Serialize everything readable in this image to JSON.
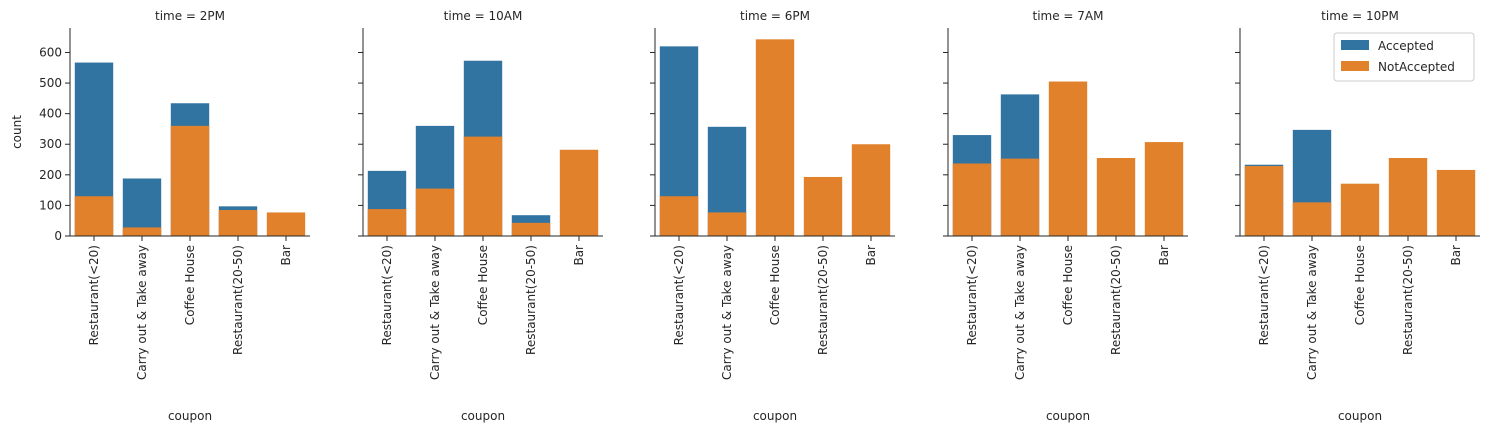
{
  "chart_data": {
    "type": "bar",
    "facet_variable": "time",
    "xlabel": "coupon",
    "ylabel": "count",
    "ylim": [
      0,
      680
    ],
    "yticks": [
      0,
      100,
      200,
      300,
      400,
      500,
      600
    ],
    "categories": [
      "Restaurant(<20)",
      "Carry out & Take away",
      "Coffee House",
      "Restaurant(20-50)",
      "Bar"
    ],
    "legend": {
      "placement": "top-right",
      "entries": [
        {
          "label": "Accepted",
          "color": "#3274a1"
        },
        {
          "label": "NotAccepted",
          "color": "#e1812c"
        }
      ]
    },
    "panels": [
      {
        "title": "time = 2PM",
        "series": [
          {
            "name": "Accepted",
            "values": [
              567,
              188,
              434,
              97,
              0
            ]
          },
          {
            "name": "NotAccepted",
            "values": [
              130,
              28,
              360,
              85,
              77
            ]
          }
        ]
      },
      {
        "title": "time = 10AM",
        "series": [
          {
            "name": "Accepted",
            "values": [
              213,
              360,
              573,
              68,
              0
            ]
          },
          {
            "name": "NotAccepted",
            "values": [
              88,
              155,
              325,
              43,
              282
            ]
          }
        ]
      },
      {
        "title": "time = 6PM",
        "series": [
          {
            "name": "Accepted",
            "values": [
              620,
              357,
              0,
              0,
              0
            ]
          },
          {
            "name": "NotAccepted",
            "values": [
              130,
              77,
              643,
              193,
              300
            ]
          }
        ]
      },
      {
        "title": "time = 7AM",
        "series": [
          {
            "name": "Accepted",
            "values": [
              330,
              463,
              0,
              0,
              0
            ]
          },
          {
            "name": "NotAccepted",
            "values": [
              237,
              253,
              505,
              255,
              307
            ]
          }
        ]
      },
      {
        "title": "time = 10PM",
        "series": [
          {
            "name": "Accepted",
            "values": [
              233,
              347,
              0,
              0,
              0
            ]
          },
          {
            "name": "NotAccepted",
            "values": [
              229,
              110,
              171,
              255,
              216
            ]
          }
        ]
      }
    ]
  }
}
